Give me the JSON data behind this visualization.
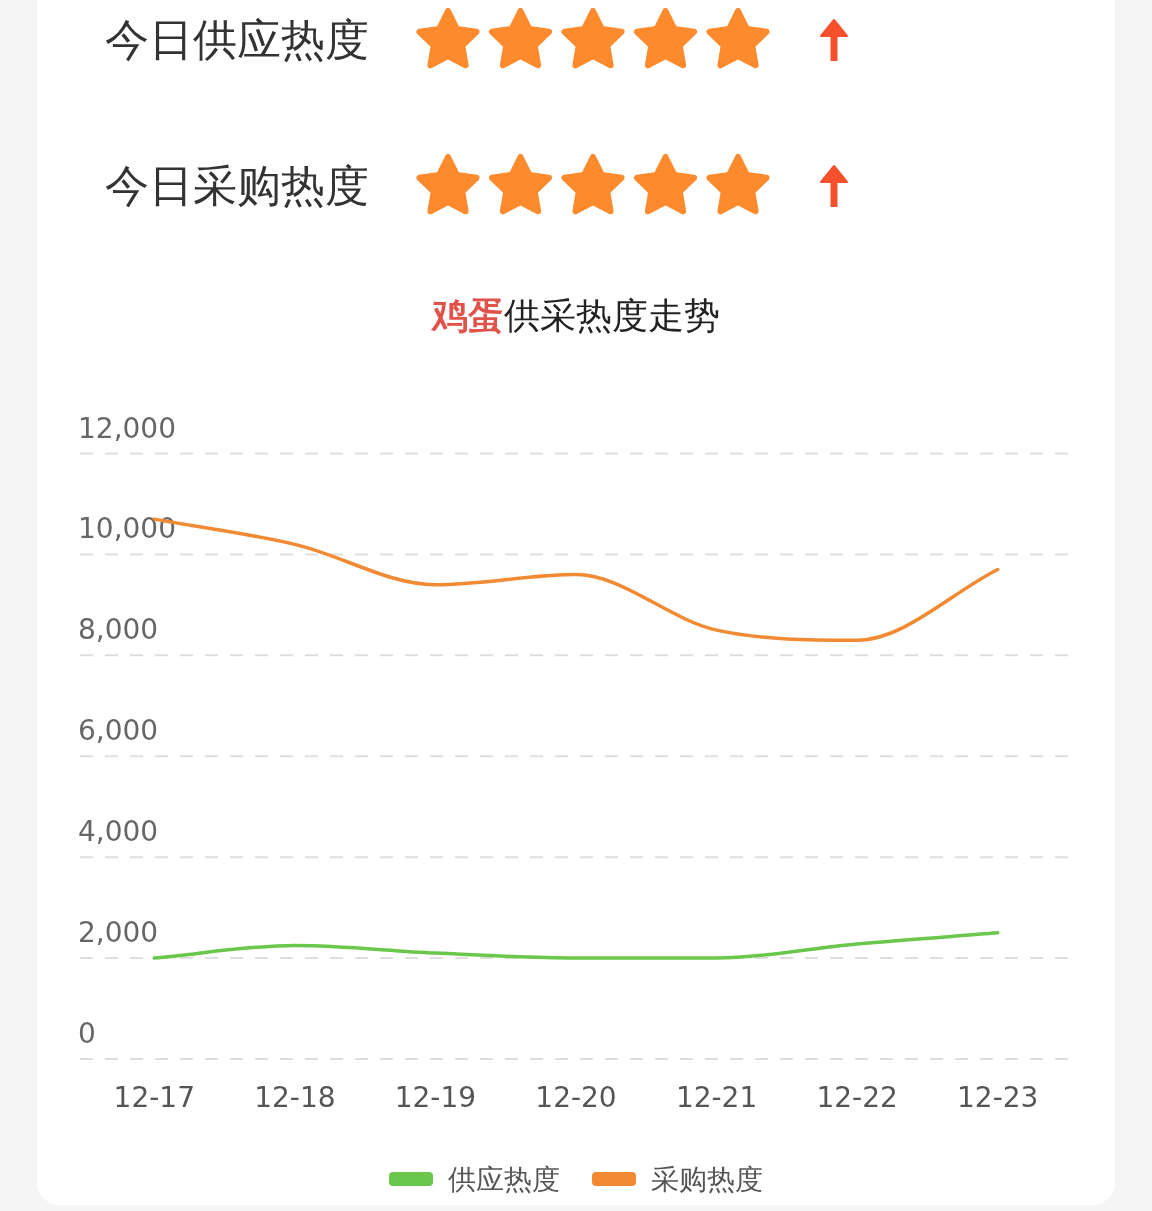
{
  "chart_data": [
    {
      "type": "other",
      "annotations": [
        "今日供应热度",
        "今日采购热度"
      ]
    },
    {
      "type": "line",
      "title": "**鸡蛋**供采热度走势",
      "categories": [
        "12-17",
        "12-18",
        "12-19",
        "12-20",
        "12-21",
        "12-22",
        "12-23"
      ],
      "series": [
        {
          "name": "供应热度",
          "color": "#6ac74c",
          "values": [
            2000,
            2250,
            2100,
            2000,
            2000,
            2280,
            2500
          ]
        },
        {
          "name": "采购热度",
          "color": "#f28a33",
          "values": [
            10700,
            10200,
            9400,
            9600,
            8500,
            8300,
            9700
          ]
        }
      ],
      "ylim": [
        0,
        12000
      ],
      "yticks": [
        0,
        {
          "value": 2000,
          "label": "2,000"
        },
        {
          "value": 4000,
          "label": "4,000"
        },
        {
          "value": 6000,
          "label": "6,000"
        },
        {
          "value": 8000,
          "label": "8,000"
        },
        {
          "value": 10000,
          "label": "10,000"
        },
        {
          "value": 12000,
          "label": "12,000"
        }
      ],
      "grid": "y",
      "legend": "bottom"
    }
  ]
}
